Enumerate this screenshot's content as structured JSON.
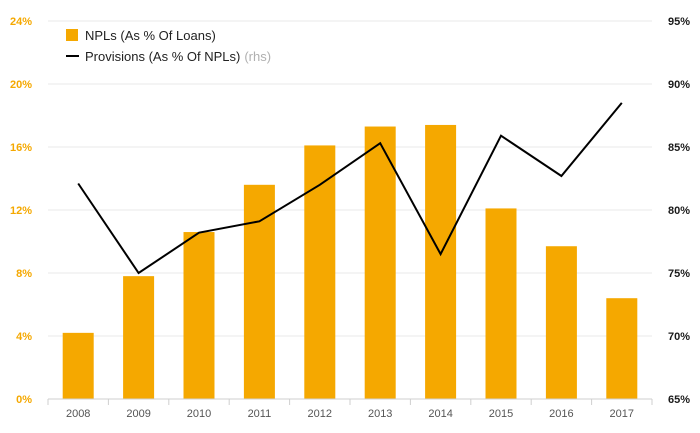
{
  "chart_data": {
    "type": "bar",
    "categories": [
      "2008",
      "2009",
      "2010",
      "2011",
      "2012",
      "2013",
      "2014",
      "2015",
      "2016",
      "2017"
    ],
    "series": [
      {
        "name": "NPLs (As % Of Loans)",
        "type": "bar",
        "axis": "left",
        "color": "#f5a800",
        "values": [
          4.2,
          7.8,
          10.6,
          13.6,
          16.1,
          17.3,
          17.4,
          12.1,
          9.7,
          6.4
        ]
      },
      {
        "name": "Provisions (As % Of NPLs)",
        "type": "line",
        "axis": "right",
        "color": "#000000",
        "values": [
          82.1,
          75.0,
          78.2,
          79.1,
          82.0,
          85.3,
          76.5,
          85.9,
          82.7,
          88.5
        ]
      }
    ],
    "legend": {
      "items": [
        {
          "label": "NPLs (As % Of Loans)",
          "suffix": ""
        },
        {
          "label": "Provisions (As % Of NPLs)",
          "suffix": "(rhs)"
        }
      ],
      "placement": "top-left"
    },
    "y_left": {
      "ylim": [
        0,
        24
      ],
      "ticks": [
        0,
        4,
        8,
        12,
        16,
        20,
        24
      ],
      "tick_labels": [
        "0%",
        "4%",
        "8%",
        "12%",
        "16%",
        "20%",
        "24%"
      ],
      "color": "#f5a800"
    },
    "y_right": {
      "ylim": [
        65,
        95
      ],
      "ticks": [
        65,
        70,
        75,
        80,
        85,
        90,
        95
      ],
      "tick_labels": [
        "65%",
        "70%",
        "75%",
        "80%",
        "85%",
        "90%",
        "95%"
      ],
      "color": "#1a1a1a"
    },
    "grid": true,
    "title": "",
    "xlabel": "",
    "ylabel": ""
  }
}
